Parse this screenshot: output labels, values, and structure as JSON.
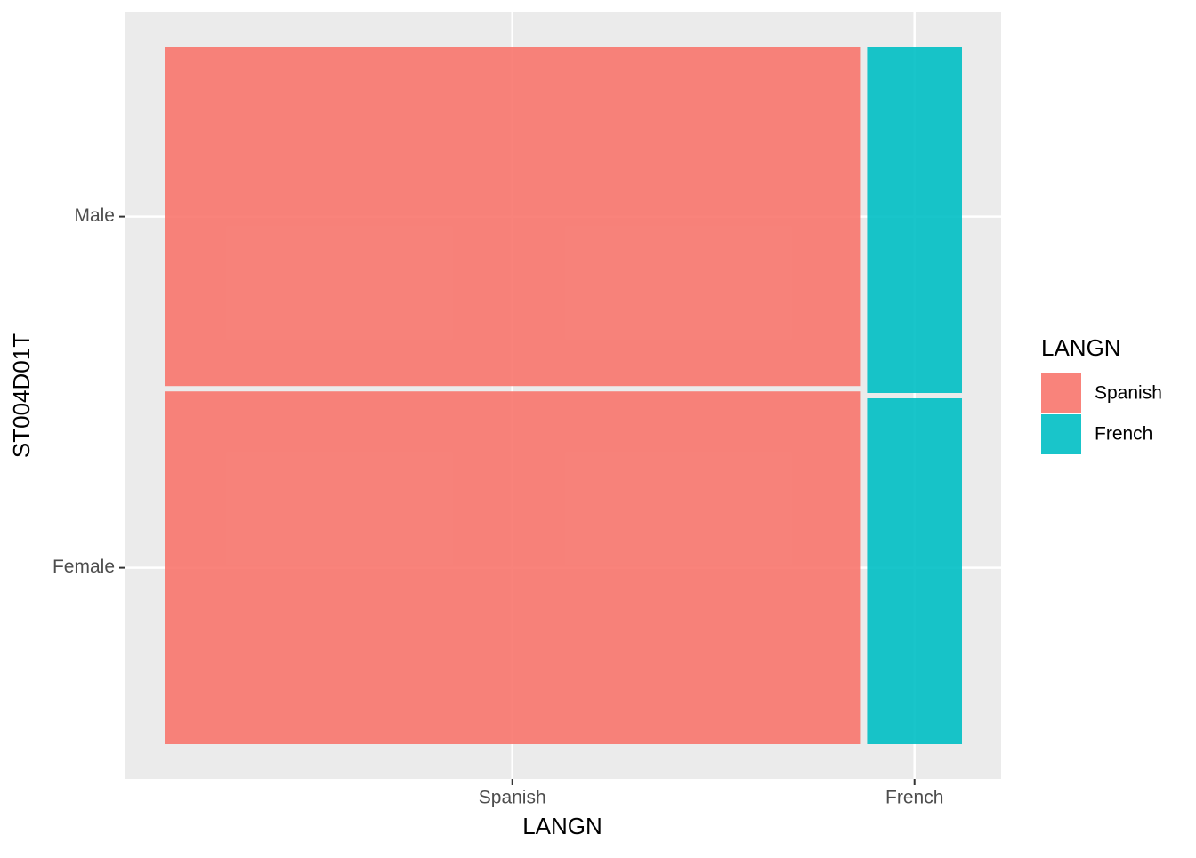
{
  "chart_data": {
    "type": "mosaic",
    "x_label": "LANGN",
    "y_label": "ST004D01T",
    "legend_title": "LANGN",
    "categories": [
      "Spanish",
      "French"
    ],
    "y_categories": [
      "Female",
      "Male"
    ],
    "series": [
      {
        "name": "Spanish",
        "color": "#F8766D",
        "width": 0.88,
        "values": [
          0.51,
          0.49
        ]
      },
      {
        "name": "French",
        "color": "#00BFC4",
        "width": 0.12,
        "values": [
          0.5,
          0.5
        ]
      }
    ],
    "grid": true
  }
}
